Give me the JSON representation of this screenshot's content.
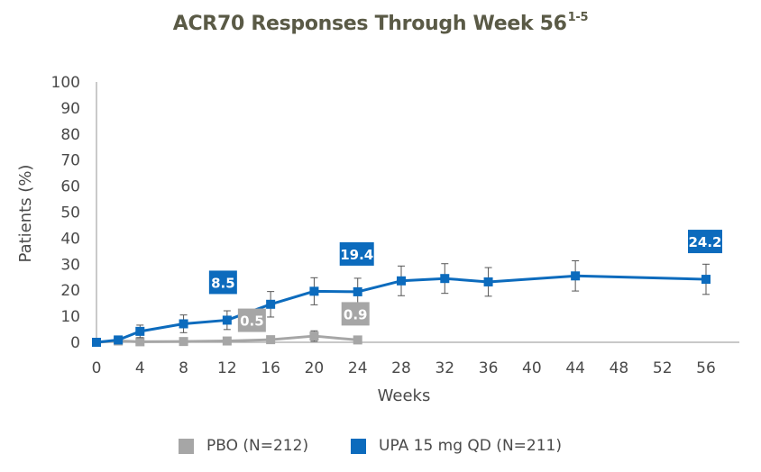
{
  "title": {
    "main": "ACR70 Responses Through Week 56",
    "sup": "1-5"
  },
  "colors": {
    "upa": "#0c6bbd",
    "pbo": "#a6a6a6",
    "title": "#5a5a46",
    "axis": "#a6a6a6"
  },
  "chart_data": {
    "type": "line",
    "xlabel": "Weeks",
    "ylabel": "Patients (%)",
    "xlim": [
      0,
      58
    ],
    "ylim": [
      0,
      100
    ],
    "xticks": [
      0,
      4,
      8,
      12,
      16,
      20,
      24,
      28,
      32,
      36,
      40,
      44,
      48,
      52,
      56
    ],
    "yticks": [
      0,
      10,
      20,
      30,
      40,
      50,
      60,
      70,
      80,
      90,
      100
    ],
    "grid": false,
    "legend_position": "bottom",
    "series": [
      {
        "name": "PBO (N=212)",
        "color": "#a6a6a6",
        "x": [
          0,
          2,
          4,
          8,
          12,
          16,
          20,
          24
        ],
        "y": [
          0,
          0.5,
          0.2,
          0.3,
          0.5,
          1.0,
          2.4,
          0.9
        ],
        "err": [
          0,
          0,
          0.5,
          0.5,
          1.0,
          1.2,
          2.0,
          1.0
        ],
        "labels": [
          {
            "x": 12,
            "y": 0.5,
            "text": "0.5"
          },
          {
            "x": 24,
            "y": 0.9,
            "text": "0.9"
          }
        ]
      },
      {
        "name": "UPA 15 mg QD (N=211)",
        "color": "#0c6bbd",
        "x": [
          0,
          2,
          4,
          8,
          12,
          16,
          20,
          24,
          28,
          32,
          36,
          44,
          56
        ],
        "y": [
          0,
          0.9,
          4.2,
          7.1,
          8.5,
          14.6,
          19.6,
          19.4,
          23.6,
          24.5,
          23.2,
          25.5,
          24.2
        ],
        "err": [
          0,
          0.7,
          2.4,
          3.4,
          3.6,
          4.9,
          5.2,
          5.2,
          5.7,
          5.7,
          5.5,
          5.8,
          5.8
        ],
        "labels": [
          {
            "x": 12,
            "y": 8.5,
            "text": "8.5"
          },
          {
            "x": 24,
            "y": 19.4,
            "text": "19.4"
          },
          {
            "x": 56,
            "y": 24.2,
            "text": "24.2"
          }
        ]
      }
    ]
  },
  "legend": [
    {
      "label": "PBO (N=212)",
      "color": "#a6a6a6"
    },
    {
      "label": "UPA 15 mg QD (N=211)",
      "color": "#0c6bbd"
    }
  ]
}
